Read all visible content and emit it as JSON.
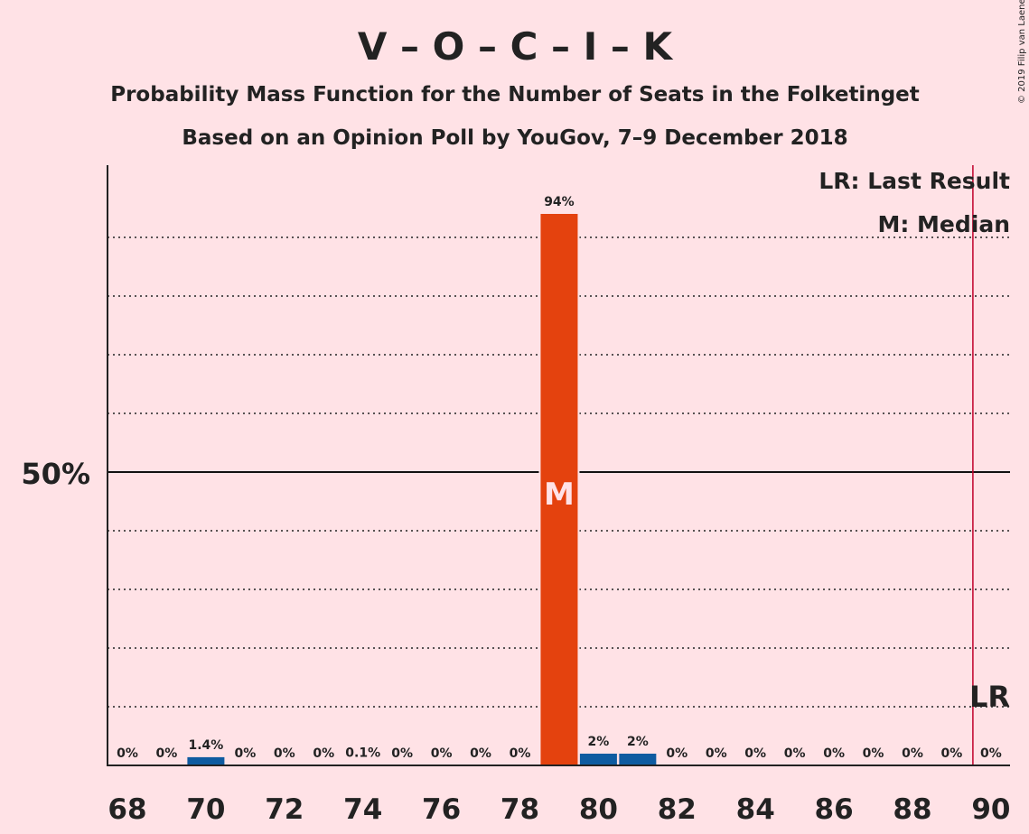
{
  "chart_data": {
    "type": "bar",
    "title": "V – O – C – I – K",
    "subtitle": "Probability Mass Function for the Number of Seats in the Folketinget",
    "subtitle2": "Based on an Opinion Poll by YouGov, 7–9 December 2018",
    "copyright": "© 2019 Filip van Laenen",
    "x": [
      68,
      69,
      70,
      71,
      72,
      73,
      74,
      75,
      76,
      77,
      78,
      79,
      80,
      81,
      82,
      83,
      84,
      85,
      86,
      87,
      88,
      89,
      90
    ],
    "values": [
      0,
      0,
      1.4,
      0,
      0,
      0,
      0.1,
      0,
      0,
      0,
      0,
      94,
      2,
      2,
      0,
      0,
      0,
      0,
      0,
      0,
      0,
      0,
      0
    ],
    "labels": [
      "0%",
      "0%",
      "1.4%",
      "0%",
      "0%",
      "0%",
      "0.1%",
      "0%",
      "0%",
      "0%",
      "0%",
      "94%",
      "2%",
      "2%",
      "0%",
      "0%",
      "0%",
      "0%",
      "0%",
      "0%",
      "0%",
      "0%",
      "0%"
    ],
    "x_ticks": [
      "68",
      "70",
      "72",
      "74",
      "76",
      "78",
      "80",
      "82",
      "84",
      "86",
      "88",
      "90"
    ],
    "y_tick_label": "50%",
    "ylim": [
      0,
      102
    ],
    "median_seat": 79,
    "median_marker": "M",
    "last_result_seat": 90,
    "last_result_marker": "LR",
    "legend": [
      "LR: Last Result",
      "M: Median"
    ],
    "grid": true,
    "colors": {
      "median_bar": "#e4420e",
      "bar": "#0e5ba0",
      "last_result_line": "#c0002a",
      "background": "#ffe2e6"
    }
  }
}
